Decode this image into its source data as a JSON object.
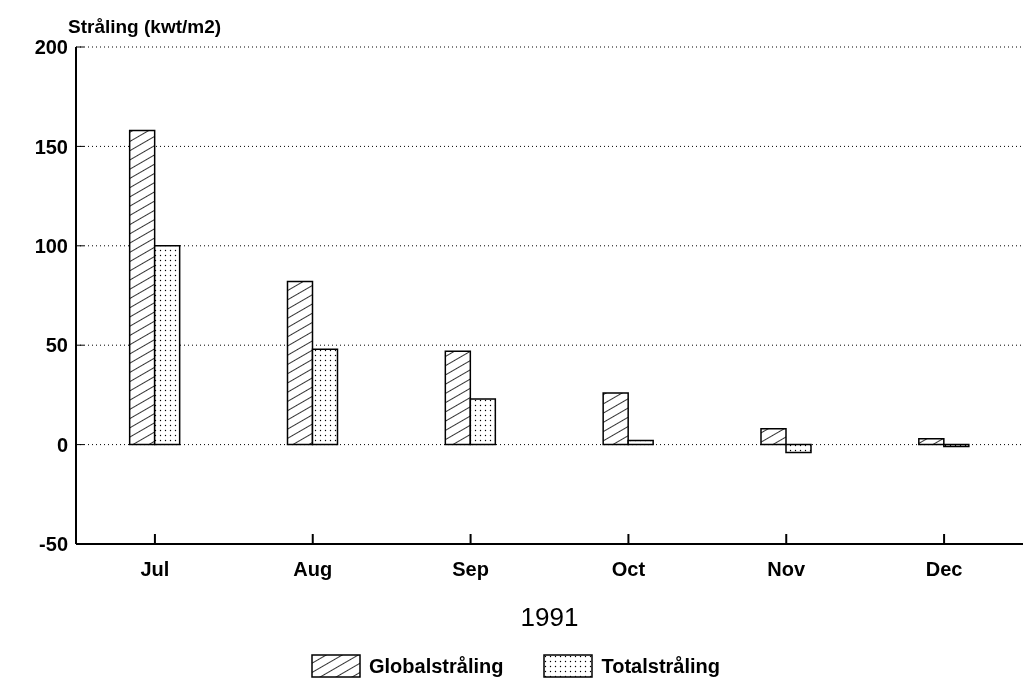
{
  "chart_data": {
    "type": "bar",
    "ylabel": "Stråling (kwt/m2)",
    "xlabel": "1991",
    "categories": [
      "Jul",
      "Aug",
      "Sep",
      "Oct",
      "Nov",
      "Dec"
    ],
    "series": [
      {
        "name": "Globalstråling",
        "color": "#000000",
        "values": [
          158,
          82,
          47,
          26,
          8,
          3
        ]
      },
      {
        "name": "Totalstråling",
        "color": "#000000",
        "values": [
          100,
          48,
          23,
          2,
          -4,
          -1
        ]
      }
    ],
    "ylim": [
      -50,
      200
    ],
    "yticks": [
      -50,
      0,
      50,
      100,
      150,
      200
    ],
    "grid": "y",
    "legend": "bottom"
  }
}
